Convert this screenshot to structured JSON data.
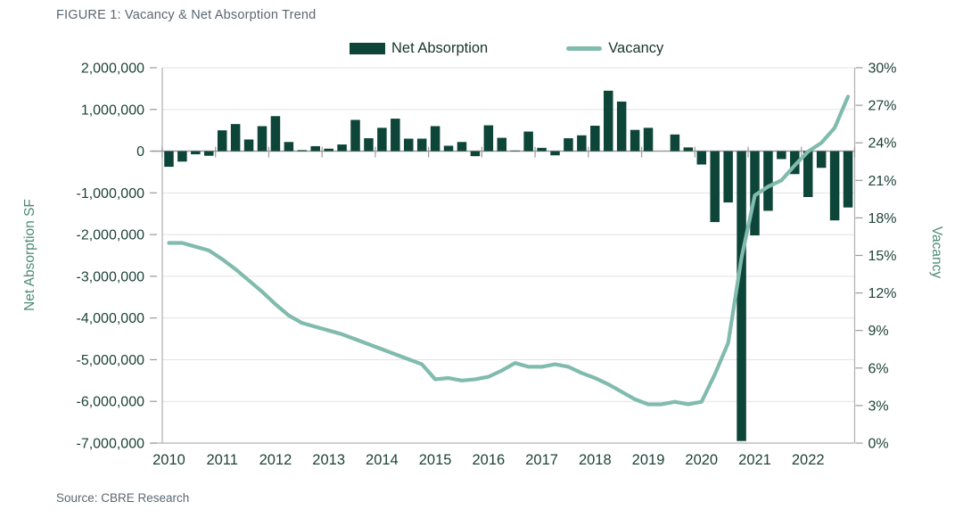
{
  "figure": {
    "title": "FIGURE 1: Vacancy & Net Absorption Trend",
    "source": "Source: CBRE Research"
  },
  "legend": {
    "bar_label": "Net Absorption",
    "line_label": "Vacancy"
  },
  "colors": {
    "bar": "#0D4538",
    "line": "#80BBAD",
    "tick_text": "#1D4339",
    "axis_title": "#4E8A78",
    "gray_text": "#5B6770",
    "grid": "#E3E3E3",
    "zero_line": "#9B9B9B",
    "border": "#B3B3B3"
  },
  "chart_data": {
    "type": "combo: bar + line, quarterly 2010Q1-2022Q4",
    "categories_years": [
      "2010",
      "2011",
      "2012",
      "2013",
      "2014",
      "2015",
      "2016",
      "2017",
      "2018",
      "2019",
      "2020",
      "2021",
      "2022"
    ],
    "left_axis": {
      "title": "Net Absorption SF",
      "min": -7000000,
      "max": 2000000,
      "tick_labels": [
        "2,000,000",
        "1,000,000",
        "0",
        "-1,000,000",
        "-2,000,000",
        "-3,000,000",
        "-4,000,000",
        "-5,000,000",
        "-6,000,000",
        "-7,000,000"
      ]
    },
    "right_axis": {
      "title": "Vacancy",
      "min": 0,
      "max": 30,
      "tick_labels": [
        "30%",
        "27%",
        "24%",
        "21%",
        "18%",
        "15%",
        "12%",
        "9%",
        "6%",
        "3%",
        "0%"
      ]
    },
    "grid": "horizontal gridlines at left-axis ticks",
    "legend_position": "top center",
    "series": [
      {
        "name": "Net Absorption",
        "type": "bar",
        "color": "#0D4538",
        "values": [
          -375000,
          -250000,
          -75000,
          -110000,
          500000,
          650000,
          280000,
          600000,
          840000,
          220000,
          25000,
          120000,
          60000,
          160000,
          750000,
          310000,
          560000,
          780000,
          300000,
          300000,
          600000,
          130000,
          220000,
          -120000,
          620000,
          320000,
          15000,
          470000,
          80000,
          -100000,
          310000,
          380000,
          610000,
          1450000,
          1190000,
          510000,
          560000,
          0,
          400000,
          90000,
          -320000,
          -1700000,
          -1230000,
          -6950000,
          -2020000,
          -1430000,
          -190000,
          -550000,
          -1100000,
          -400000,
          -1660000,
          -1350000
        ]
      },
      {
        "name": "Vacancy",
        "type": "line",
        "color": "#80BBAD",
        "values_pct": [
          16.0,
          16.0,
          15.7,
          15.4,
          14.7,
          13.9,
          13.0,
          12.1,
          11.1,
          10.2,
          9.6,
          9.3,
          9.0,
          8.7,
          8.3,
          7.9,
          7.5,
          7.1,
          6.7,
          6.3,
          5.1,
          5.2,
          5.0,
          5.1,
          5.3,
          5.8,
          6.4,
          6.1,
          6.1,
          6.3,
          6.1,
          5.6,
          5.2,
          4.7,
          4.1,
          3.5,
          3.1,
          3.1,
          3.3,
          3.1,
          3.3,
          5.5,
          8.0,
          14.8,
          19.8,
          20.5,
          21.0,
          22.2,
          23.3,
          24.0,
          25.2,
          27.7
        ]
      }
    ]
  }
}
